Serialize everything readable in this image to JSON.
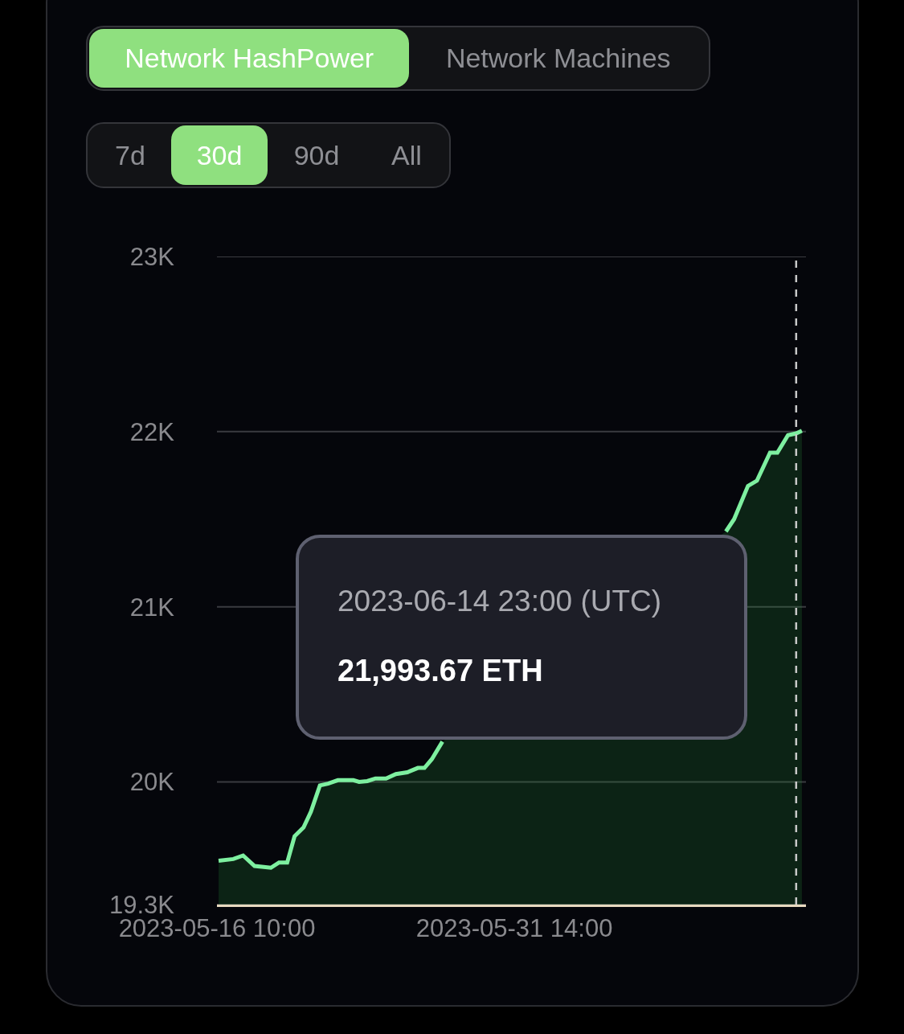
{
  "chart_data": {
    "type": "area",
    "x": [
      "2023-05-16T12:00",
      "2023-05-17T06:00",
      "2023-05-17T18:00",
      "2023-05-18T08:00",
      "2023-05-19T04:00",
      "2023-05-19T14:00",
      "2023-05-20T00:00",
      "2023-05-20T09:00",
      "2023-05-20T20:00",
      "2023-05-21T05:00",
      "2023-05-21T16:00",
      "2023-05-22T02:00",
      "2023-05-22T14:00",
      "2023-05-23T09:00",
      "2023-05-23T16:00",
      "2023-05-24T02:00",
      "2023-05-24T12:00",
      "2023-05-25T01:00",
      "2023-05-25T13:00",
      "2023-05-26T03:00",
      "2023-05-26T16:00",
      "2023-05-27T00:00",
      "2023-05-27T09:00",
      "2023-05-27T22:00",
      "2023-06-04T00:00",
      "2023-06-11T09:00",
      "2023-06-11T19:00",
      "2023-06-12T12:00",
      "2023-06-12T23:00",
      "2023-06-13T15:00",
      "2023-06-14T00:00",
      "2023-06-14T13:00",
      "2023-06-14T23:00",
      "2023-06-15T06:00"
    ],
    "series": [
      {
        "color": "#7ef0a0",
        "values": [
          19550,
          19560,
          19580,
          19520,
          19510,
          19540,
          19540,
          19690,
          19740,
          19830,
          19980,
          19990,
          20010,
          20010,
          20000,
          20005,
          20020,
          20020,
          20045,
          20055,
          20080,
          20080,
          20130,
          20230,
          null,
          21430,
          21500,
          21690,
          21720,
          21880,
          21880,
          21980,
          21990,
          22005
        ]
      }
    ],
    "xlim": [
      "2023-05-16T10:00",
      "2023-06-15T11:00"
    ],
    "xticks": [
      {
        "value": "2023-05-16T10:00",
        "label": "2023-05-16 10:00"
      },
      {
        "value": "2023-05-31T14:00",
        "label": "2023-05-31 14:00"
      }
    ],
    "ylim": [
      19300,
      23000
    ],
    "yticks": [
      {
        "value": 19300,
        "label": "19.3K"
      },
      {
        "value": 20000,
        "label": "20K"
      },
      {
        "value": 21000,
        "label": "21K"
      },
      {
        "value": 22000,
        "label": "22K"
      },
      {
        "value": 23000,
        "label": "23K"
      }
    ],
    "grid": "y",
    "marker": "none",
    "line_style": "solid",
    "ref_lines": [
      {
        "axis": "x",
        "value": "2023-06-14T23:00",
        "color": "#c8c8c8",
        "line_style": "dashed"
      }
    ],
    "annotations": [
      "Network HashPower",
      "Network Machines",
      "7d",
      "30d",
      "90d",
      "All",
      "2023-06-14 23:00 (UTC)",
      "21,993.67 ETH"
    ]
  }
}
